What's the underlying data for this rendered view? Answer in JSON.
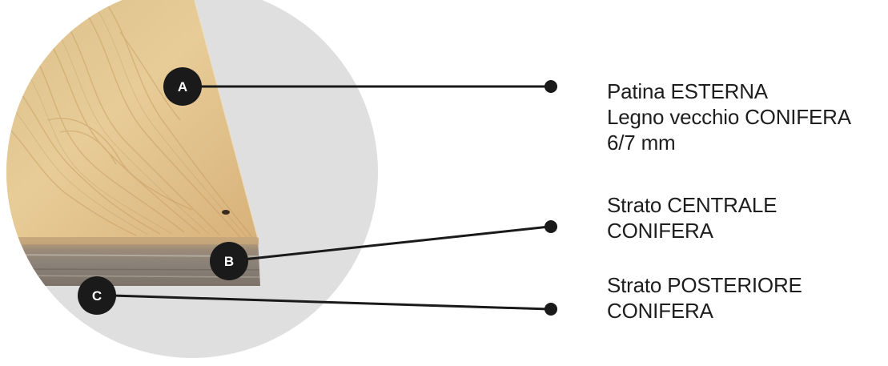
{
  "colors": {
    "background": "#ffffff",
    "disc": "#dfdfe0",
    "wood_face": "#e3c48d",
    "wood_edge": "#8c8070",
    "badge": "#1a1a1a",
    "line": "#1a1a1a",
    "text": "#1e1e1e"
  },
  "layers": [
    {
      "badge": "A",
      "lines": [
        "Patina ESTERNA",
        "Legno vecchio CONIFERA",
        "6/7 mm"
      ]
    },
    {
      "badge": "B",
      "lines": [
        "Strato CENTRALE",
        "CONIFERA"
      ]
    },
    {
      "badge": "C",
      "lines": [
        "Strato POSTERIORE",
        "CONIFERA"
      ]
    }
  ]
}
